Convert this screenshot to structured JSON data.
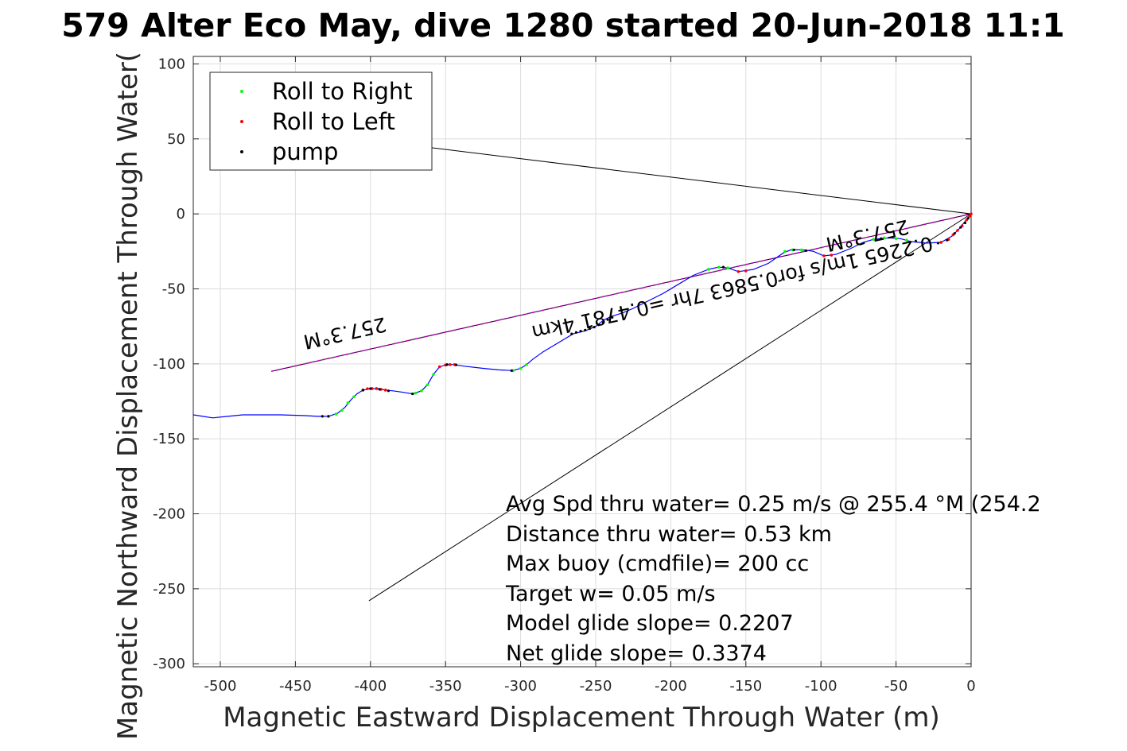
{
  "chart_data": {
    "type": "scatter",
    "title": "579 Alter Eco May, dive 1280 started 20-Jun-2018 11:1",
    "xlabel": "Magnetic Eastward Displacement Through Water (m)",
    "ylabel": "Magnetic Northward Displacement Through Water(",
    "xlim": [
      -518,
      0
    ],
    "ylim": [
      -302,
      105
    ],
    "xticks": [
      -500,
      -450,
      -400,
      -350,
      -300,
      -250,
      -200,
      -150,
      -100,
      -50,
      0
    ],
    "yticks": [
      100,
      50,
      0,
      -50,
      -100,
      -150,
      -200,
      -250,
      -300
    ],
    "grid": true,
    "legend_position": "top-left",
    "legend": [
      {
        "label": "Roll to Right",
        "color": "#00ff00"
      },
      {
        "label": "Roll to Left",
        "color": "#ff0000"
      },
      {
        "label": "pump",
        "color": "#000000"
      }
    ],
    "colors": {
      "track": "#0000ff",
      "right": "#00ff00",
      "left": "#ff0000",
      "pump": "#000000",
      "heading": "#cc00cc",
      "guide": "#000000"
    },
    "track": [
      [
        -518,
        -134
      ],
      [
        -505,
        -136
      ],
      [
        -495,
        -135
      ],
      [
        -485,
        -134
      ],
      [
        -470,
        -134
      ],
      [
        -460,
        -134
      ],
      [
        -445,
        -134.5
      ],
      [
        -435,
        -135
      ],
      [
        -428,
        -135
      ],
      [
        -422,
        -133
      ],
      [
        -417,
        -129
      ],
      [
        -413,
        -124
      ],
      [
        -409,
        -120
      ],
      [
        -405,
        -117.5
      ],
      [
        -400,
        -116.5
      ],
      [
        -395,
        -116.5
      ],
      [
        -390,
        -117.5
      ],
      [
        -385,
        -118
      ],
      [
        -378,
        -119
      ],
      [
        -372,
        -120
      ],
      [
        -366,
        -118
      ],
      [
        -362,
        -114
      ],
      [
        -358,
        -107
      ],
      [
        -354,
        -102
      ],
      [
        -349,
        -100.5
      ],
      [
        -344,
        -100.5
      ],
      [
        -338,
        -101.5
      ],
      [
        -325,
        -103
      ],
      [
        -315,
        -104
      ],
      [
        -305,
        -104.5
      ],
      [
        -300,
        -103
      ],
      [
        -296,
        -100.5
      ],
      [
        -292,
        -97
      ],
      [
        -285,
        -92
      ],
      [
        -275,
        -86
      ],
      [
        -265,
        -80
      ],
      [
        -257,
        -78
      ],
      [
        -250,
        -75
      ],
      [
        -245,
        -71
      ],
      [
        -240,
        -68.5
      ],
      [
        -232,
        -66
      ],
      [
        -225,
        -63
      ],
      [
        -215,
        -58
      ],
      [
        -205,
        -53
      ],
      [
        -195,
        -47
      ],
      [
        -185,
        -41
      ],
      [
        -175,
        -37
      ],
      [
        -168,
        -35.5
      ],
      [
        -162,
        -36
      ],
      [
        -155,
        -38.5
      ],
      [
        -145,
        -37
      ],
      [
        -135,
        -33
      ],
      [
        -125,
        -26
      ],
      [
        -120,
        -24
      ],
      [
        -112,
        -24
      ],
      [
        -105,
        -25
      ],
      [
        -98,
        -28
      ],
      [
        -90,
        -27
      ],
      [
        -80,
        -23
      ],
      [
        -72,
        -19
      ],
      [
        -65,
        -17
      ],
      [
        -55,
        -16
      ],
      [
        -47,
        -16.5
      ],
      [
        -40,
        -18.5
      ],
      [
        -30,
        -19.5
      ],
      [
        -20,
        -19
      ],
      [
        -13,
        -15
      ],
      [
        -8,
        -10
      ],
      [
        -4,
        -5
      ],
      [
        -1,
        -1
      ],
      [
        0,
        0
      ]
    ],
    "roll_right": [
      [
        -428,
        -135
      ],
      [
        -423,
        -133.5
      ],
      [
        -419,
        -131
      ],
      [
        -415,
        -126
      ],
      [
        -411,
        -122
      ],
      [
        -370,
        -119.5
      ],
      [
        -366,
        -118
      ],
      [
        -362,
        -114
      ],
      [
        -358,
        -107
      ],
      [
        -305,
        -104.5
      ],
      [
        -300,
        -103
      ],
      [
        -296,
        -100.5
      ],
      [
        -175,
        -37
      ],
      [
        -168,
        -35.5
      ],
      [
        -162,
        -36
      ],
      [
        -124,
        -25
      ],
      [
        -119,
        -24
      ],
      [
        -113,
        -24
      ],
      [
        -65,
        -17
      ],
      [
        -58,
        -16
      ],
      [
        -50,
        -16.5
      ],
      [
        -43,
        -17.5
      ]
    ],
    "roll_left": [
      [
        -405,
        -117.5
      ],
      [
        -402,
        -116.6
      ],
      [
        -399,
        -116.5
      ],
      [
        -396,
        -116.5
      ],
      [
        -393,
        -117
      ],
      [
        -390,
        -117.5
      ],
      [
        -354,
        -102
      ],
      [
        -350,
        -100.8
      ],
      [
        -347,
        -100.5
      ],
      [
        -344,
        -100.5
      ],
      [
        -155,
        -38.5
      ],
      [
        -150,
        -38
      ],
      [
        -98,
        -28
      ],
      [
        -93,
        -27.5
      ],
      [
        -20,
        -19
      ],
      [
        -15,
        -17
      ],
      [
        -12,
        -14
      ],
      [
        -9,
        -11
      ],
      [
        -6,
        -8
      ],
      [
        -3,
        -4
      ],
      [
        -1,
        -1.5
      ],
      [
        0,
        0
      ]
    ],
    "pump": [
      [
        -432,
        -135
      ],
      [
        -428,
        -135
      ],
      [
        -405,
        -117.5
      ],
      [
        -400,
        -116.5
      ],
      [
        -394,
        -117
      ],
      [
        -388,
        -118
      ],
      [
        -372,
        -120
      ],
      [
        -349,
        -100.5
      ],
      [
        -343,
        -100.7
      ],
      [
        -306,
        -104.5
      ],
      [
        -266,
        -80
      ],
      [
        -263,
        -79
      ],
      [
        -260,
        -78.2
      ],
      [
        -257,
        -77.5
      ],
      [
        -254,
        -76.5
      ],
      [
        -251,
        -75.5
      ],
      [
        -248,
        -74
      ],
      [
        -245,
        -72.5
      ],
      [
        -242,
        -70.5
      ],
      [
        -239,
        -69
      ],
      [
        -165,
        -35.5
      ],
      [
        -118,
        -24
      ],
      [
        -110,
        -24.5
      ],
      [
        -60,
        -16.5
      ],
      [
        -22,
        -19.5
      ],
      [
        -16,
        -17.5
      ],
      [
        -11,
        -13
      ],
      [
        -7,
        -9
      ],
      [
        -4,
        -6
      ],
      [
        -2,
        -3
      ]
    ],
    "heading_line": [
      [
        -466,
        -105
      ],
      [
        0,
        0
      ]
    ],
    "guide_lines": [
      [
        [
          -391,
          48
        ],
        [
          0,
          0
        ]
      ],
      [
        [
          -401,
          -258
        ],
        [
          0,
          0
        ]
      ]
    ],
    "annotations": [
      "Avg Spd thru water=  0.25 m/s @ 255.4 °M (254.2",
      "Distance thru water=  0.53 km",
      "Max buoy (cmdfile)= 200 cc",
      "Target w= 0.05 m/s",
      "Model glide slope= 0.2207",
      "Net glide slope= 0.3374"
    ],
    "rotated_labels": [
      {
        "text": "257.3°M",
        "x": -418,
        "y": -75
      },
      {
        "text": "0.2265 1m/s for0.5863 7hr =0.4781 4km",
        "x": -160,
        "y": -45
      },
      {
        "text": "257.3°M",
        "x": -70,
        "y": -10
      }
    ]
  }
}
